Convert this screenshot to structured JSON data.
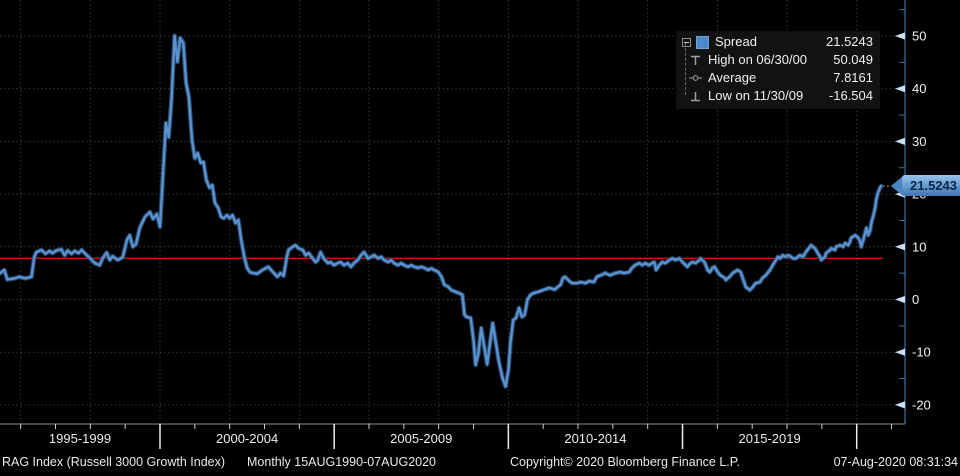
{
  "chart_data": {
    "type": "line",
    "title": "",
    "xlabel": "",
    "ylabel": "",
    "y_axis": {
      "min": -23.6,
      "max": 56.8,
      "major_ticks": [
        50,
        40,
        30,
        20,
        10,
        0,
        -10,
        -20
      ],
      "minor_step": 5,
      "grid": true,
      "side": "right"
    },
    "x_axis": {
      "start": 1995.41,
      "end": 2020.7,
      "full_range_label": "15AUG1990-07AUG2020",
      "grid_years": [
        1996,
        1998,
        2000,
        2002,
        2004,
        2006,
        2008,
        2010,
        2012,
        2014,
        2016,
        2018,
        2020
      ],
      "tick_year_first": 1996,
      "tick_year_last": 2021,
      "divider_years": [
        2000,
        2005,
        2010,
        2015,
        2020
      ],
      "sections": [
        {
          "label": "1995-1999",
          "start": 1995,
          "end": 2000
        },
        {
          "label": "2000-2004",
          "start": 2000,
          "end": 2005
        },
        {
          "label": "2005-2009",
          "start": 2005,
          "end": 2010
        },
        {
          "label": "2010-2014",
          "start": 2010,
          "end": 2015
        },
        {
          "label": "2015-2019",
          "start": 2015,
          "end": 2020
        }
      ]
    },
    "average_line": {
      "value": 7.8161
    },
    "high_point": {
      "date": "06/30/00",
      "value": 50.049
    },
    "low_point": {
      "date": "11/30/09",
      "value": -16.504
    },
    "last_value": 21.5243,
    "series": [
      {
        "name": "Spread",
        "points": [
          [
            1995.41,
            5
          ],
          [
            1995.53,
            5.6
          ],
          [
            1995.62,
            3.8
          ],
          [
            1995.82,
            4
          ],
          [
            1995.96,
            4.3
          ],
          [
            1996.13,
            4
          ],
          [
            1996.31,
            4.3
          ],
          [
            1996.39,
            8
          ],
          [
            1996.45,
            9
          ],
          [
            1996.6,
            9.4
          ],
          [
            1996.71,
            8.7
          ],
          [
            1996.83,
            9.2
          ],
          [
            1996.91,
            8.8
          ],
          [
            1997.03,
            9.3
          ],
          [
            1997.17,
            9.5
          ],
          [
            1997.26,
            8.4
          ],
          [
            1997.35,
            9.3
          ],
          [
            1997.46,
            8.7
          ],
          [
            1997.55,
            9.2
          ],
          [
            1997.66,
            8.8
          ],
          [
            1997.75,
            9.4
          ],
          [
            1997.9,
            8.4
          ],
          [
            1997.98,
            7.9
          ],
          [
            1998.13,
            6.9
          ],
          [
            1998.27,
            6.5
          ],
          [
            1998.36,
            7.9
          ],
          [
            1998.47,
            8.9
          ],
          [
            1998.56,
            7.5
          ],
          [
            1998.64,
            8.2
          ],
          [
            1998.79,
            7.5
          ],
          [
            1998.93,
            8
          ],
          [
            1999.05,
            11.3
          ],
          [
            1999.13,
            12.2
          ],
          [
            1999.22,
            10
          ],
          [
            1999.31,
            10.5
          ],
          [
            1999.42,
            13.6
          ],
          [
            1999.57,
            15.7
          ],
          [
            1999.71,
            16.6
          ],
          [
            1999.8,
            15.3
          ],
          [
            1999.91,
            16.2
          ],
          [
            2000,
            13.8
          ],
          [
            2000.08,
            23
          ],
          [
            2000.17,
            33.5
          ],
          [
            2000.25,
            30.8
          ],
          [
            2000.33,
            37.9
          ],
          [
            2000.42,
            50.049
          ],
          [
            2000.5,
            45.1
          ],
          [
            2000.58,
            49.6
          ],
          [
            2000.67,
            48.7
          ],
          [
            2000.75,
            41.1
          ],
          [
            2000.83,
            38.4
          ],
          [
            2000.92,
            30.3
          ],
          [
            2001,
            26.8
          ],
          [
            2001.08,
            27.8
          ],
          [
            2001.17,
            25.9
          ],
          [
            2001.25,
            26.1
          ],
          [
            2001.33,
            22.7
          ],
          [
            2001.42,
            21.2
          ],
          [
            2001.5,
            21.7
          ],
          [
            2001.58,
            18.3
          ],
          [
            2001.67,
            17.4
          ],
          [
            2001.75,
            15.7
          ],
          [
            2001.83,
            15.4
          ],
          [
            2001.92,
            16
          ],
          [
            2002,
            15.4
          ],
          [
            2002.08,
            16
          ],
          [
            2002.17,
            14.5
          ],
          [
            2002.25,
            15.1
          ],
          [
            2002.33,
            11.3
          ],
          [
            2002.42,
            8.1
          ],
          [
            2002.5,
            6
          ],
          [
            2002.58,
            5.2
          ],
          [
            2002.67,
            5
          ],
          [
            2002.79,
            4.9
          ],
          [
            2002.94,
            5.6
          ],
          [
            2003.11,
            6.2
          ],
          [
            2003.23,
            5.3
          ],
          [
            2003.37,
            4.3
          ],
          [
            2003.46,
            5
          ],
          [
            2003.55,
            4.5
          ],
          [
            2003.64,
            8.1
          ],
          [
            2003.69,
            9.4
          ],
          [
            2003.81,
            10
          ],
          [
            2003.89,
            10.3
          ],
          [
            2003.98,
            9.7
          ],
          [
            2004.1,
            9.4
          ],
          [
            2004.18,
            8.4
          ],
          [
            2004.27,
            8.8
          ],
          [
            2004.38,
            7.8
          ],
          [
            2004.47,
            7.1
          ],
          [
            2004.53,
            7.5
          ],
          [
            2004.61,
            9
          ],
          [
            2004.7,
            7.8
          ],
          [
            2004.82,
            6.9
          ],
          [
            2004.9,
            7.1
          ],
          [
            2004.99,
            6.5
          ],
          [
            2005.1,
            6.9
          ],
          [
            2005.19,
            7.1
          ],
          [
            2005.28,
            6.5
          ],
          [
            2005.39,
            6.9
          ],
          [
            2005.48,
            6.2
          ],
          [
            2005.57,
            6.9
          ],
          [
            2005.68,
            7.5
          ],
          [
            2005.77,
            8.4
          ],
          [
            2005.86,
            9
          ],
          [
            2005.97,
            7.8
          ],
          [
            2006.06,
            8.1
          ],
          [
            2006.15,
            8.4
          ],
          [
            2006.26,
            7.8
          ],
          [
            2006.35,
            8.1
          ],
          [
            2006.43,
            7.5
          ],
          [
            2006.55,
            7.1
          ],
          [
            2006.63,
            7.5
          ],
          [
            2006.72,
            6.9
          ],
          [
            2006.83,
            6.5
          ],
          [
            2006.92,
            6.9
          ],
          [
            2007.01,
            6.5
          ],
          [
            2007.12,
            6.2
          ],
          [
            2007.21,
            6.5
          ],
          [
            2007.3,
            6.2
          ],
          [
            2007.41,
            6
          ],
          [
            2007.5,
            6.2
          ],
          [
            2007.59,
            6
          ],
          [
            2007.7,
            5.6
          ],
          [
            2007.79,
            5.9
          ],
          [
            2007.87,
            5.6
          ],
          [
            2007.99,
            5.2
          ],
          [
            2008.08,
            4.3
          ],
          [
            2008.16,
            2.8
          ],
          [
            2008.28,
            2.4
          ],
          [
            2008.36,
            1.8
          ],
          [
            2008.51,
            1.4
          ],
          [
            2008.59,
            1.2
          ],
          [
            2008.68,
            0.9
          ],
          [
            2008.74,
            -2.9
          ],
          [
            2008.8,
            -3.3
          ],
          [
            2008.92,
            -3.5
          ],
          [
            2009,
            -7.7
          ],
          [
            2009.06,
            -12.4
          ],
          [
            2009.14,
            -10.2
          ],
          [
            2009.22,
            -5.4
          ],
          [
            2009.31,
            -9
          ],
          [
            2009.39,
            -12.3
          ],
          [
            2009.46,
            -9
          ],
          [
            2009.55,
            -4.5
          ],
          [
            2009.64,
            -8.1
          ],
          [
            2009.72,
            -11.5
          ],
          [
            2009.83,
            -14.8
          ],
          [
            2009.92,
            -16.504
          ],
          [
            2010,
            -13.4
          ],
          [
            2010.06,
            -8.3
          ],
          [
            2010.14,
            -3.9
          ],
          [
            2010.22,
            -3.5
          ],
          [
            2010.31,
            -1.6
          ],
          [
            2010.39,
            -3.3
          ],
          [
            2010.47,
            -2.9
          ],
          [
            2010.55,
            0
          ],
          [
            2010.64,
            0.9
          ],
          [
            2010.72,
            1.2
          ],
          [
            2010.83,
            1.4
          ],
          [
            2010.92,
            1.6
          ],
          [
            2011,
            1.8
          ],
          [
            2011.17,
            2.2
          ],
          [
            2011.33,
            1.9
          ],
          [
            2011.5,
            2.8
          ],
          [
            2011.57,
            4.1
          ],
          [
            2011.63,
            4.3
          ],
          [
            2011.75,
            3.5
          ],
          [
            2011.83,
            3.1
          ],
          [
            2011.97,
            3.1
          ],
          [
            2012.08,
            3.3
          ],
          [
            2012.21,
            3.1
          ],
          [
            2012.33,
            3.5
          ],
          [
            2012.46,
            3.3
          ],
          [
            2012.54,
            4.3
          ],
          [
            2012.65,
            4.6
          ],
          [
            2012.78,
            5
          ],
          [
            2012.92,
            4.6
          ],
          [
            2013.07,
            5
          ],
          [
            2013.21,
            5.2
          ],
          [
            2013.32,
            5
          ],
          [
            2013.47,
            5.2
          ],
          [
            2013.55,
            6
          ],
          [
            2013.64,
            6.5
          ],
          [
            2013.76,
            6.9
          ],
          [
            2013.84,
            6.5
          ],
          [
            2013.93,
            6.9
          ],
          [
            2014.04,
            6.5
          ],
          [
            2014.13,
            6.9
          ],
          [
            2014.19,
            7.1
          ],
          [
            2014.24,
            5.6
          ],
          [
            2014.33,
            6.5
          ],
          [
            2014.42,
            7.1
          ],
          [
            2014.51,
            6.9
          ],
          [
            2014.62,
            7.5
          ],
          [
            2014.71,
            7.8
          ],
          [
            2014.8,
            7.5
          ],
          [
            2014.91,
            7.8
          ],
          [
            2015,
            7.1
          ],
          [
            2015.14,
            6.2
          ],
          [
            2015.23,
            6.9
          ],
          [
            2015.29,
            7.1
          ],
          [
            2015.37,
            6.9
          ],
          [
            2015.49,
            7.5
          ],
          [
            2015.52,
            7.8
          ],
          [
            2015.63,
            7.1
          ],
          [
            2015.72,
            5.6
          ],
          [
            2015.78,
            5.2
          ],
          [
            2015.86,
            6
          ],
          [
            2015.92,
            6.2
          ],
          [
            2016.01,
            5.2
          ],
          [
            2016.09,
            4.6
          ],
          [
            2016.21,
            4.1
          ],
          [
            2016.24,
            3.7
          ],
          [
            2016.35,
            4.3
          ],
          [
            2016.44,
            5
          ],
          [
            2016.58,
            5.6
          ],
          [
            2016.67,
            5.2
          ],
          [
            2016.78,
            3.1
          ],
          [
            2016.81,
            2.4
          ],
          [
            2016.93,
            1.8
          ],
          [
            2017.02,
            2.4
          ],
          [
            2017.1,
            3.1
          ],
          [
            2017.22,
            3.3
          ],
          [
            2017.3,
            4.1
          ],
          [
            2017.39,
            4.6
          ],
          [
            2017.51,
            5.6
          ],
          [
            2017.59,
            6.5
          ],
          [
            2017.68,
            7.5
          ],
          [
            2017.74,
            8.1
          ],
          [
            2017.8,
            7.8
          ],
          [
            2017.88,
            8.4
          ],
          [
            2017.94,
            8.1
          ],
          [
            2018.03,
            8.4
          ],
          [
            2018.11,
            8.1
          ],
          [
            2018.17,
            7.8
          ],
          [
            2018.26,
            7.8
          ],
          [
            2018.37,
            8.4
          ],
          [
            2018.46,
            8.1
          ],
          [
            2018.54,
            9
          ],
          [
            2018.66,
            10
          ],
          [
            2018.69,
            10.3
          ],
          [
            2018.8,
            9.7
          ],
          [
            2018.83,
            9.4
          ],
          [
            2018.95,
            8.1
          ],
          [
            2018.98,
            7.5
          ],
          [
            2019.09,
            8.1
          ],
          [
            2019.12,
            8.8
          ],
          [
            2019.24,
            9.4
          ],
          [
            2019.27,
            9.7
          ],
          [
            2019.38,
            9.4
          ],
          [
            2019.41,
            10
          ],
          [
            2019.53,
            10.3
          ],
          [
            2019.61,
            10
          ],
          [
            2019.67,
            10.7
          ],
          [
            2019.76,
            10.3
          ],
          [
            2019.81,
            11
          ],
          [
            2019.84,
            11.7
          ],
          [
            2019.96,
            12.2
          ],
          [
            2020.04,
            11.7
          ],
          [
            2020.1,
            11
          ],
          [
            2020.13,
            10
          ],
          [
            2020.19,
            11.3
          ],
          [
            2020.25,
            12.8
          ],
          [
            2020.28,
            13.6
          ],
          [
            2020.33,
            12.2
          ],
          [
            2020.39,
            13.2
          ],
          [
            2020.42,
            14.5
          ],
          [
            2020.48,
            16
          ],
          [
            2020.53,
            17.4
          ],
          [
            2020.56,
            18.9
          ],
          [
            2020.61,
            20.2
          ],
          [
            2020.67,
            21.2
          ],
          [
            2020.7,
            21.5243
          ]
        ]
      }
    ]
  },
  "legend": {
    "rows": [
      {
        "icon": "spread-swatch",
        "label": "Spread",
        "value": "21.5243"
      },
      {
        "icon": "high-marker",
        "label": "High on 06/30/00",
        "value": "50.049"
      },
      {
        "icon": "average-marker",
        "label": "Average",
        "value": "7.8161"
      },
      {
        "icon": "low-marker",
        "label": "Low on 11/30/09",
        "value": "-16.504"
      }
    ]
  },
  "badge": {
    "value": "21.5243"
  },
  "footer": {
    "instrument": "RAG Index (Russell 3000 Growth Index)",
    "periodicity": "Monthly 15AUG1990-07AUG2020",
    "copyright": "Copyright© 2020 Bloomberg Finance L.P.",
    "datetime": "07-Aug-2020 08:31:34"
  },
  "colors": {
    "background": "#000000",
    "line": "#5b91cc",
    "average_line": "#cf1404",
    "grid": "#3c3c3c",
    "axis": "#2d6191",
    "tick_label": "#f2f2f2",
    "badge_background": "#4b86c2",
    "badge_text": "#0a2743",
    "legend_background": "#131313"
  }
}
